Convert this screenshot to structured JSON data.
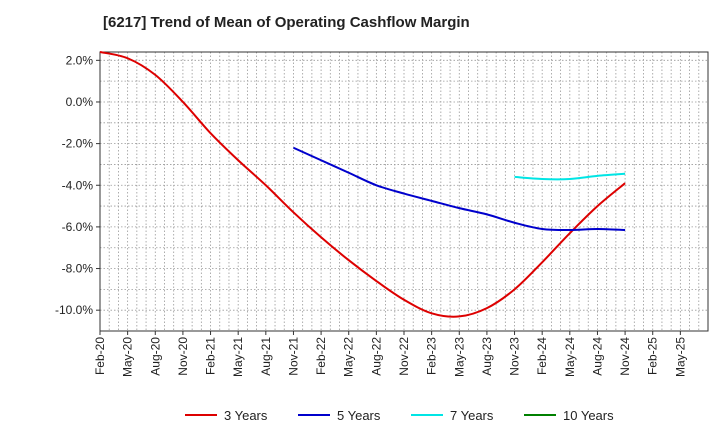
{
  "chart_data": {
    "type": "line",
    "title": "[6217]  Trend of Mean of Operating Cashflow Margin",
    "ylim": [
      -11.0,
      2.4
    ],
    "yticks": [
      2.0,
      0.0,
      -2.0,
      -4.0,
      -6.0,
      -8.0,
      -10.0
    ],
    "ytick_labels": [
      "2.0%",
      "0.0%",
      "-2.0%",
      "-4.0%",
      "-6.0%",
      "-8.0%",
      "-10.0%"
    ],
    "x_labels": [
      "Feb-20",
      "May-20",
      "Aug-20",
      "Nov-20",
      "Feb-21",
      "May-21",
      "Aug-21",
      "Nov-21",
      "Feb-22",
      "May-22",
      "Aug-22",
      "Nov-22",
      "Feb-23",
      "May-23",
      "Aug-23",
      "Nov-23",
      "Feb-24",
      "May-24",
      "Aug-24",
      "Nov-24",
      "Feb-25",
      "May-25"
    ],
    "grid": true,
    "legend_position": "bottom",
    "series": [
      {
        "name": "3 Years",
        "color": "#dd0000",
        "points": [
          [
            0,
            2.4
          ],
          [
            1,
            2.1
          ],
          [
            2,
            1.3
          ],
          [
            3,
            0.0
          ],
          [
            4,
            -1.5
          ],
          [
            5,
            -2.8
          ],
          [
            6,
            -4.0
          ],
          [
            7,
            -5.3
          ],
          [
            8,
            -6.5
          ],
          [
            9,
            -7.6
          ],
          [
            10,
            -8.6
          ],
          [
            11,
            -9.5
          ],
          [
            12,
            -10.15
          ],
          [
            13,
            -10.3
          ],
          [
            14,
            -9.9
          ],
          [
            15,
            -9.0
          ],
          [
            16,
            -7.7
          ],
          [
            17,
            -6.3
          ],
          [
            18,
            -5.0
          ],
          [
            19,
            -3.9
          ]
        ]
      },
      {
        "name": "5 Years",
        "color": "#0000cc",
        "points": [
          [
            7,
            -2.2
          ],
          [
            8,
            -2.8
          ],
          [
            9,
            -3.4
          ],
          [
            10,
            -4.0
          ],
          [
            11,
            -4.4
          ],
          [
            12,
            -4.75
          ],
          [
            13,
            -5.1
          ],
          [
            14,
            -5.4
          ],
          [
            15,
            -5.8
          ],
          [
            16,
            -6.1
          ],
          [
            17,
            -6.15
          ],
          [
            18,
            -6.1
          ],
          [
            19,
            -6.15
          ]
        ]
      },
      {
        "name": "7 Years",
        "color": "#00e5e5",
        "points": [
          [
            15,
            -3.6
          ],
          [
            16,
            -3.7
          ],
          [
            17,
            -3.7
          ],
          [
            18,
            -3.55
          ],
          [
            19,
            -3.45
          ]
        ]
      },
      {
        "name": "10 Years",
        "color": "#008000",
        "points": []
      }
    ]
  }
}
